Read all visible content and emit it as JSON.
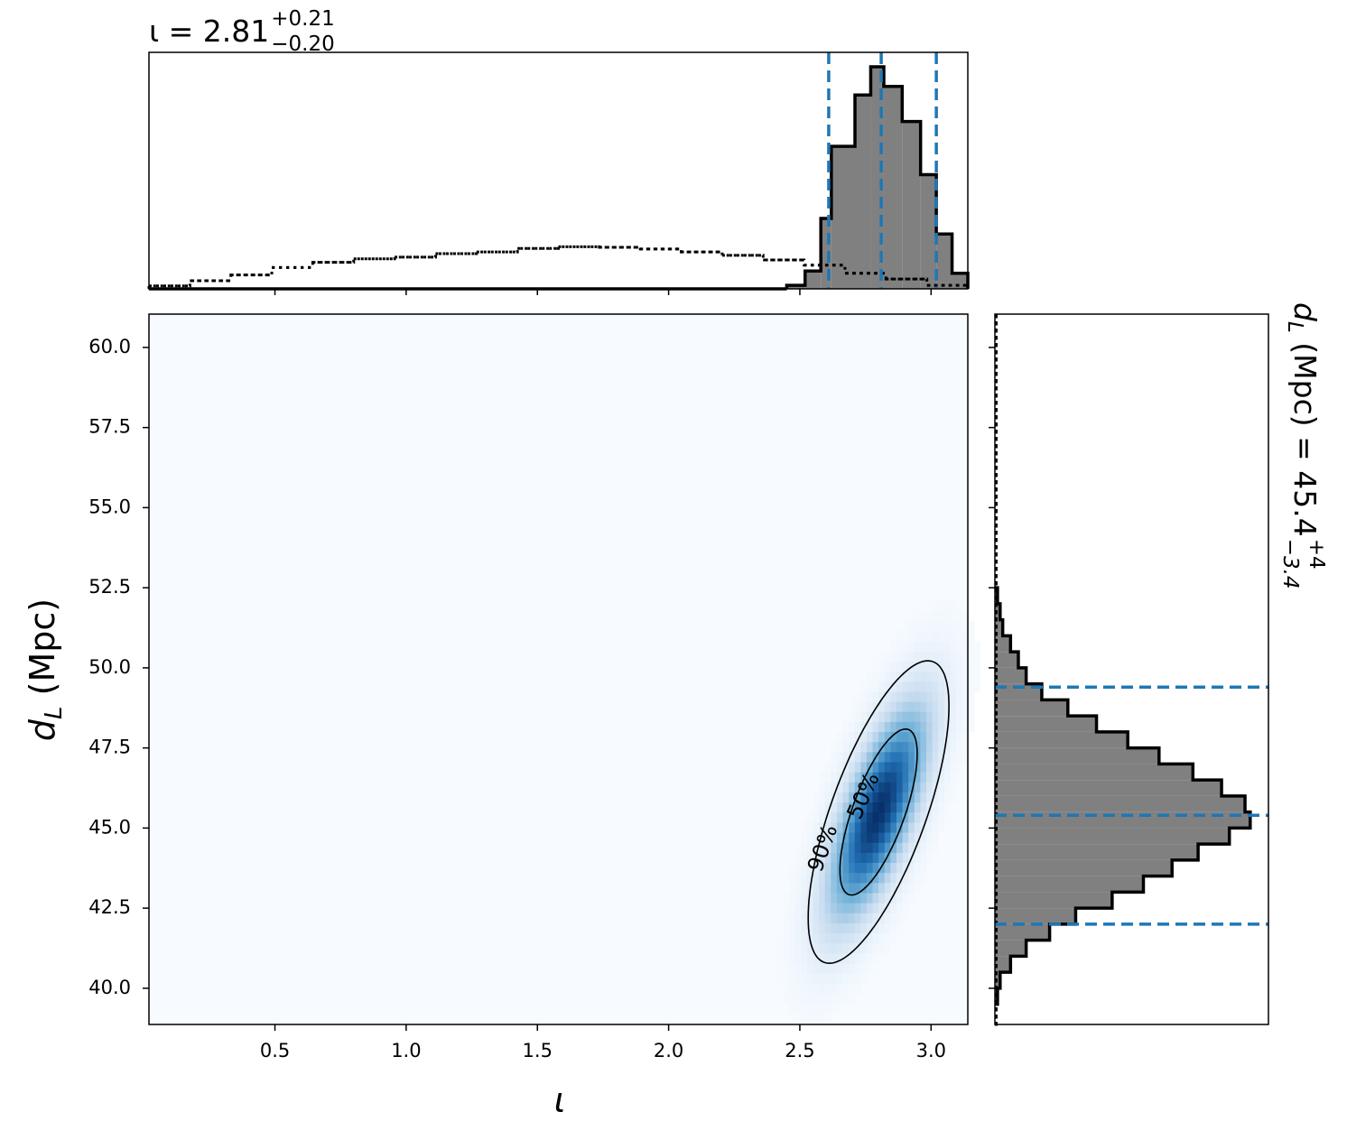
{
  "chart_data": [
    {
      "type": "histogram",
      "title": {
        "main": "ι = 2.81",
        "upper": "+0.21",
        "lower": "−0.20"
      },
      "xlim": [
        0.02,
        3.14
      ],
      "ylim": [
        0,
        4.1
      ],
      "xticks": [
        0.5,
        1,
        1.5,
        2,
        2.5,
        3
      ],
      "quantiles": [
        2.61,
        2.81,
        3.02
      ],
      "quantile_color": "#1f77b4",
      "series": [
        {
          "style": "solid",
          "color": "#808080",
          "bins": [
            2.45,
            2.52,
            2.58,
            2.62,
            2.71,
            2.77,
            2.82,
            2.89,
            2.96,
            3.02,
            3.08,
            3.14
          ],
          "values": [
            0.06,
            0.31,
            1.22,
            2.47,
            3.36,
            3.85,
            3.51,
            2.9,
            1.98,
            0.95,
            0.27
          ]
        },
        {
          "style": "dotted",
          "color": "#000000",
          "bins": [
            0.02,
            0.176,
            0.332,
            0.488,
            0.644,
            0.8,
            0.956,
            1.112,
            1.268,
            1.424,
            1.58,
            1.736,
            1.892,
            2.048,
            2.204,
            2.36,
            2.516,
            2.672,
            2.828,
            2.984,
            3.14
          ],
          "values": [
            0.05,
            0.14,
            0.24,
            0.37,
            0.46,
            0.52,
            0.55,
            0.61,
            0.64,
            0.7,
            0.73,
            0.72,
            0.69,
            0.64,
            0.58,
            0.5,
            0.41,
            0.27,
            0.17,
            0.06
          ]
        }
      ]
    },
    {
      "type": "density",
      "xlabel": "ι",
      "ylabel": {
        "symbol": "d",
        "subscript": "L",
        "unit": " (Mpc)"
      },
      "xlim": [
        0.02,
        3.14
      ],
      "ylim": [
        38.87,
        61.04
      ],
      "xticks": [
        0.5,
        {
          "value": 1,
          "label": "1.0"
        },
        1.5,
        {
          "value": 2,
          "label": "2.0"
        },
        2.5,
        {
          "value": 3,
          "label": "3.0"
        }
      ],
      "yticks": [
        {
          "value": 40,
          "label": "40.0"
        },
        42.5,
        {
          "value": 45,
          "label": "45.0"
        },
        47.5,
        {
          "value": 50,
          "label": "50.0"
        },
        52.5,
        {
          "value": 55,
          "label": "55.0"
        },
        57.5,
        {
          "value": 60,
          "label": "60.0"
        }
      ],
      "density": {
        "mean": [
          2.8,
          45.5
        ],
        "std": [
          0.125,
          2.2
        ],
        "corr": 0.7
      },
      "colormap": [
        "#f7fbff",
        "#c6dbef",
        "#6baed6",
        "#2171b5",
        "#08306b"
      ],
      "contour_levels": [
        50,
        90
      ],
      "contour_labels": [
        "50%",
        "90%"
      ]
    },
    {
      "type": "histogram",
      "orientation": "horizontal",
      "label": {
        "symbol": "d",
        "subscript": "L",
        "unit": " (Mpc) = 45.4",
        "upper": "+4",
        "lower": "−3.4"
      },
      "xlim": [
        0,
        0.105
      ],
      "ylim": [
        38.87,
        61.04
      ],
      "yticks": [
        40,
        42.5,
        45,
        47.5,
        50,
        52.5,
        55,
        57.5,
        60
      ],
      "quantiles": [
        42.0,
        45.4,
        49.4
      ],
      "quantile_color": "#1f77b4",
      "series": [
        {
          "style": "solid",
          "color": "#808080",
          "bins": [
            39.5,
            40,
            40.5,
            41,
            41.5,
            42,
            42.5,
            43,
            43.5,
            44,
            44.5,
            45,
            45.5,
            46,
            46.5,
            47,
            47.5,
            48,
            48.5,
            49,
            49.5,
            50,
            50.5,
            51,
            51.5,
            52,
            52.5
          ],
          "values": [
            0.001,
            0.002,
            0.006,
            0.012,
            0.021,
            0.031,
            0.045,
            0.057,
            0.068,
            0.078,
            0.09,
            0.098,
            0.096,
            0.087,
            0.076,
            0.063,
            0.051,
            0.039,
            0.028,
            0.018,
            0.012,
            0.009,
            0.006,
            0.003,
            0.002,
            0.001
          ]
        },
        {
          "style": "dotted",
          "color": "#000000",
          "bins": [
            38.87,
            61.04
          ],
          "values": [
            0.0005
          ]
        }
      ]
    }
  ]
}
